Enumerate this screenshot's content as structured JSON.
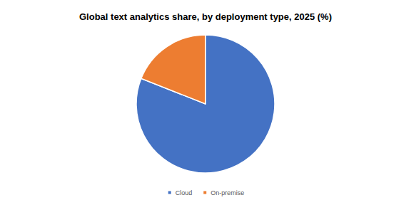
{
  "chart_data": {
    "type": "pie",
    "title": "Global text analytics share, by deployment type, 2025 (%)",
    "categories": [
      "Cloud",
      "On-premise"
    ],
    "values": [
      81,
      19
    ],
    "colors": [
      "#4472c4",
      "#ed7d31"
    ],
    "legend": "bottom",
    "data_labels": false
  }
}
